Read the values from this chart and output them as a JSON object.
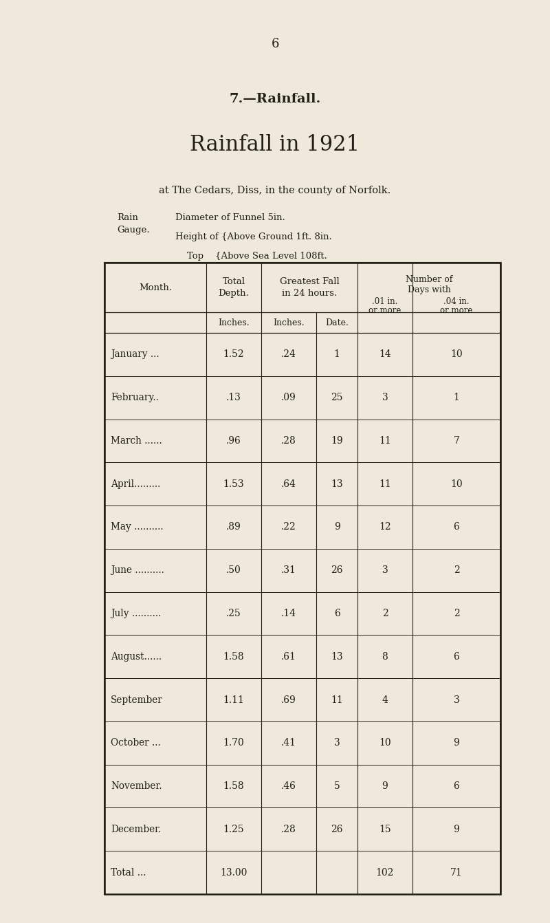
{
  "page_number": "6",
  "section_title": "7.—Rainfall.",
  "main_title": "Rainfall in 1921",
  "subtitle": "at The Cedars, Diss, in the county of Norfolk.",
  "rg_line1": "Diameter of Funnel 5in.",
  "rg_line2": "Height of {Above Ground 1ft. 8in.",
  "rg_line3": "    Top    {Above Sea Level 108ft.",
  "rows": [
    [
      "January ...",
      "1.52",
      ".24",
      "1",
      "14",
      "10"
    ],
    [
      "February..",
      ".13",
      ".09",
      "25",
      "3",
      "1"
    ],
    [
      "March ......",
      ".96",
      ".28",
      "19",
      "11",
      "7"
    ],
    [
      "April.........",
      "1.53",
      ".64",
      "13",
      "11",
      "10"
    ],
    [
      "May ..........",
      ".89",
      ".22",
      "9",
      "12",
      "6"
    ],
    [
      "June ..........",
      ".50",
      ".31",
      "26",
      "3",
      "2"
    ],
    [
      "July ..........",
      ".25",
      ".14",
      "6",
      "2",
      "2"
    ],
    [
      "August......",
      "1.58",
      ".61",
      "13",
      "8",
      "6"
    ],
    [
      "September",
      "1.11",
      ".69",
      "11",
      "4",
      "3"
    ],
    [
      "October ...",
      "1.70",
      ".41",
      "3",
      "10",
      "9"
    ],
    [
      "November.",
      "1.58",
      ".46",
      "5",
      "9",
      "6"
    ],
    [
      "December.",
      "1.25",
      ".28",
      "26",
      "15",
      "9"
    ],
    [
      "Total ...",
      "13.00",
      "",
      "",
      "102",
      "71"
    ]
  ],
  "bg_color": "#eee9da",
  "text_color": "#231f17",
  "border_color": "#231f17",
  "figsize": [
    8.0,
    13.42
  ],
  "dpi": 100
}
